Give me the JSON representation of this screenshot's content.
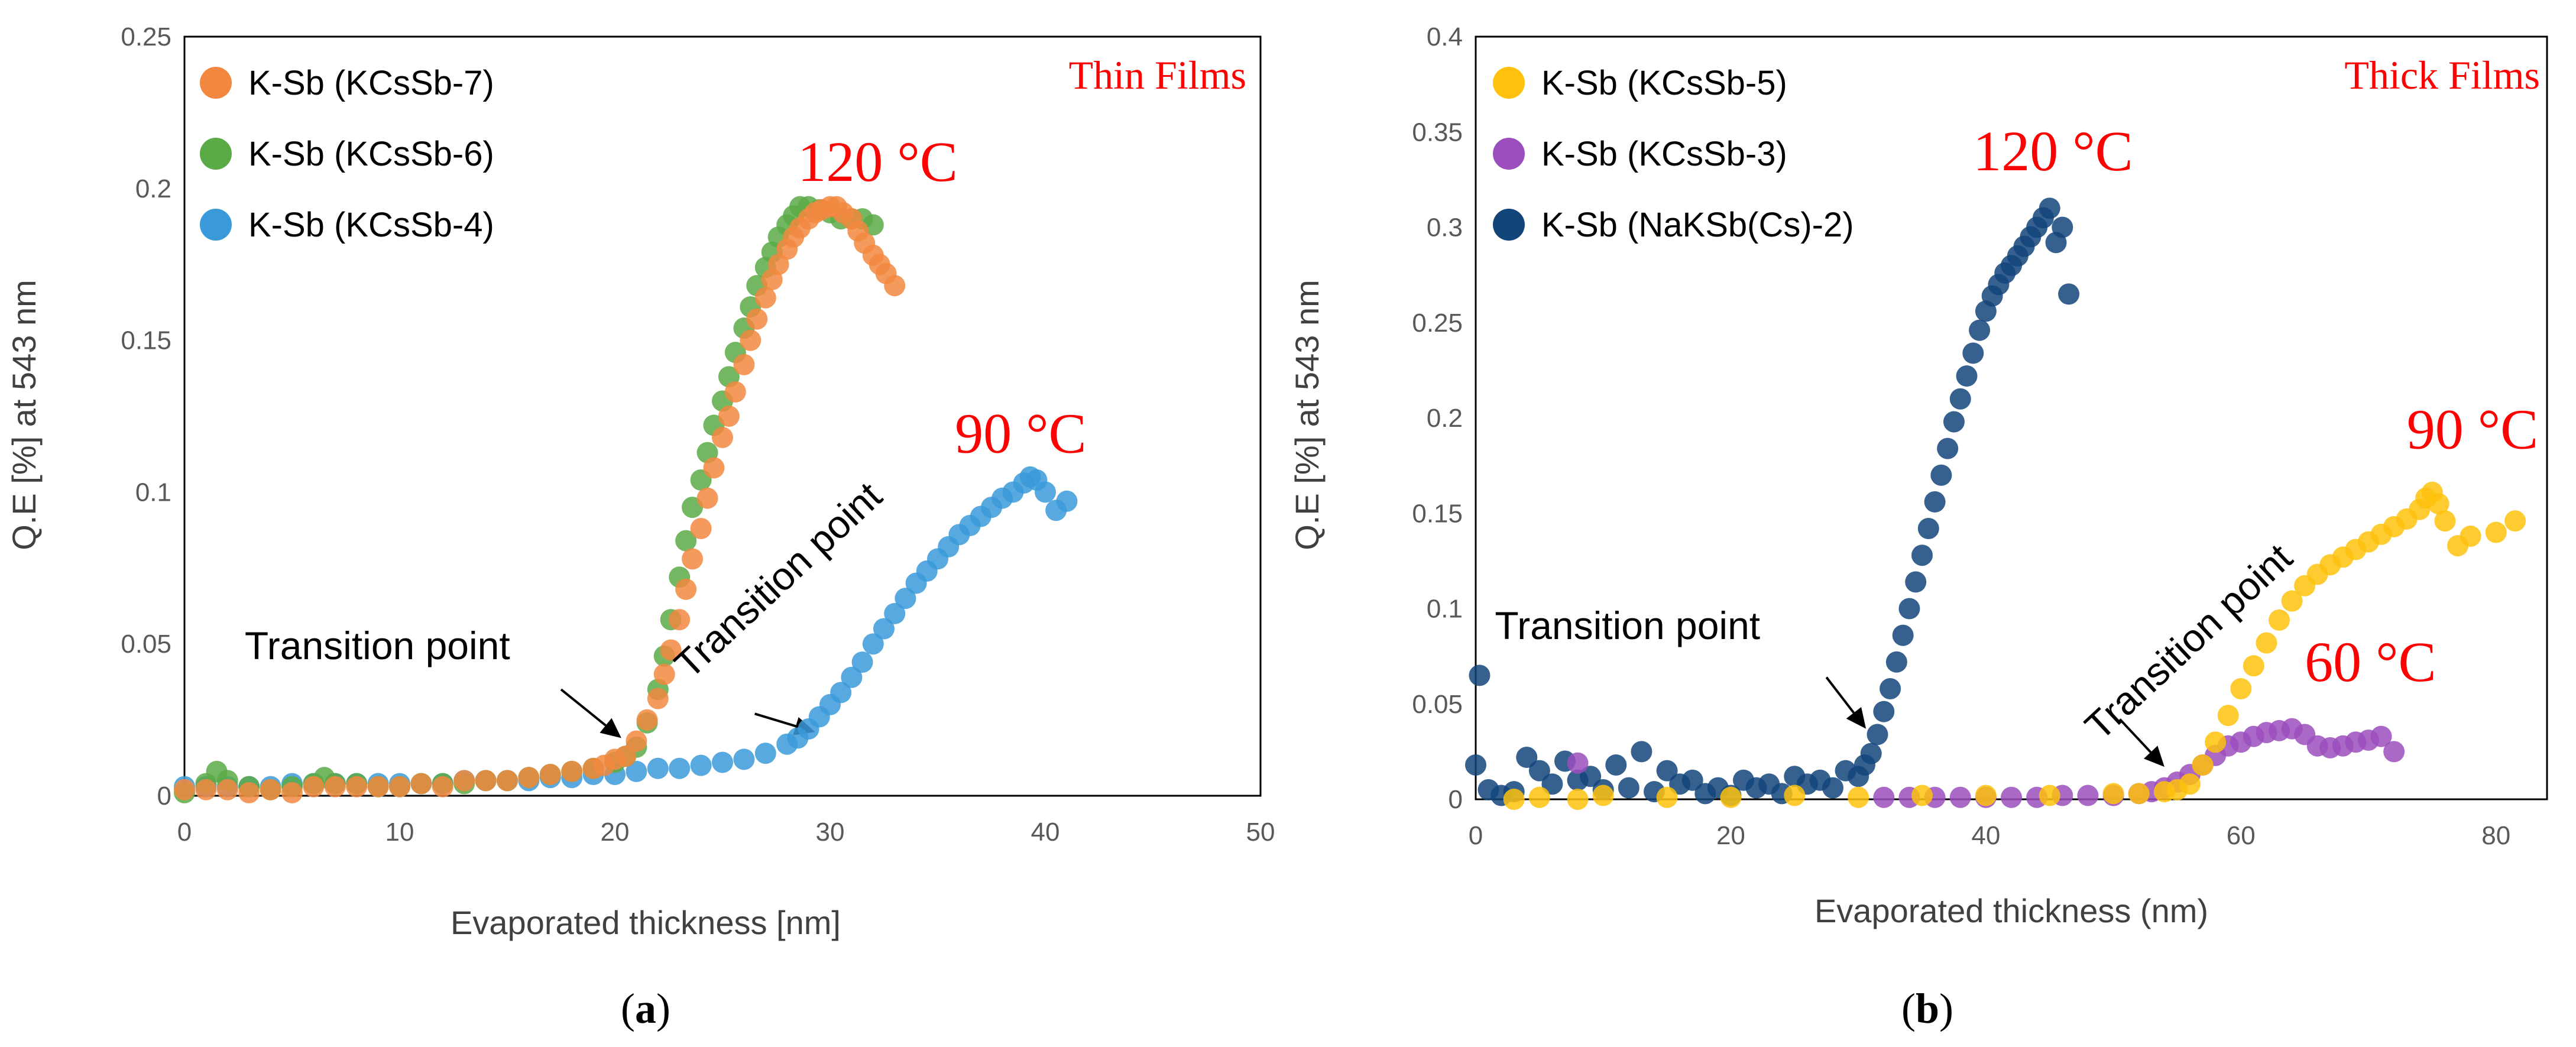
{
  "chart_data": [
    {
      "type": "scatter",
      "panel": "a",
      "caption_letter": "a",
      "title": "",
      "tag": "Thin Films",
      "xlabel": "Evaporated thickness [nm]",
      "ylabel": "Q.E [%] at 543 nm",
      "xlim": [
        0,
        50
      ],
      "ylim": [
        0,
        0.25
      ],
      "xticks": [
        0,
        10,
        20,
        30,
        40,
        50
      ],
      "yticks": [
        0,
        0.05,
        0.1,
        0.15,
        0.2,
        0.25
      ],
      "xtick_labels": [
        "0",
        "10",
        "20",
        "30",
        "40",
        "50"
      ],
      "ytick_labels": [
        "0",
        "0.05",
        "0.1",
        "0.15",
        "0.2",
        "0.25"
      ],
      "legend_position": "top-left",
      "annotations": [
        {
          "text": "120 °C",
          "x": 28.5,
          "y": 0.2025,
          "color": "#ff0000"
        },
        {
          "text": "90 °C",
          "x": 35.8,
          "y": 0.113,
          "color": "#ff0000"
        },
        {
          "text": "Transition point",
          "x": 2.8,
          "y": 0.045
        },
        {
          "text": "Transition point",
          "x": 23.5,
          "y": 0.038
        }
      ],
      "arrows": [
        {
          "from": [
            17.5,
            0.035
          ],
          "to": [
            20.3,
            0.019
          ]
        },
        {
          "from": [
            26.5,
            0.027
          ],
          "to": [
            29.3,
            0.021
          ]
        }
      ],
      "series": [
        {
          "name": "K-Sb (KCsSb-7)",
          "color": "#f2883f",
          "x": [
            0,
            1,
            2,
            3,
            4,
            5,
            6,
            7,
            8,
            9,
            10,
            11,
            12,
            13,
            14,
            15,
            16,
            17,
            18,
            19,
            19.5,
            20,
            20.5,
            21,
            21.5,
            22,
            22.3,
            22.6,
            23,
            23.3,
            23.6,
            24,
            24.3,
            24.6,
            25,
            25.3,
            25.6,
            26,
            26.3,
            26.6,
            27,
            27.3,
            27.6,
            28,
            28.3,
            28.6,
            29,
            29.3,
            29.6,
            30,
            30.3,
            30.6,
            31,
            31.3,
            31.6,
            32,
            32.3,
            32.6,
            33
          ],
          "y": [
            0.002,
            0.002,
            0.002,
            0.001,
            0.002,
            0.001,
            0.003,
            0.003,
            0.003,
            0.003,
            0.003,
            0.004,
            0.003,
            0.005,
            0.005,
            0.005,
            0.006,
            0.007,
            0.008,
            0.009,
            0.01,
            0.012,
            0.013,
            0.018,
            0.025,
            0.032,
            0.04,
            0.048,
            0.058,
            0.068,
            0.078,
            0.088,
            0.098,
            0.108,
            0.118,
            0.125,
            0.133,
            0.142,
            0.15,
            0.157,
            0.164,
            0.17,
            0.175,
            0.18,
            0.184,
            0.187,
            0.19,
            0.192,
            0.193,
            0.194,
            0.194,
            0.192,
            0.19,
            0.186,
            0.182,
            0.178,
            0.175,
            0.172,
            0.168
          ]
        },
        {
          "name": "K-Sb (KCsSb-6)",
          "color": "#5aaa46",
          "x": [
            0,
            1,
            1.5,
            2,
            3,
            4,
            5,
            6,
            6.5,
            7,
            8,
            9,
            10,
            11,
            12,
            13,
            14,
            15,
            16,
            17,
            18,
            19,
            20,
            20.5,
            21,
            21.5,
            22,
            22.3,
            22.6,
            23,
            23.3,
            23.6,
            24,
            24.3,
            24.6,
            25,
            25.3,
            25.6,
            26,
            26.3,
            26.6,
            27,
            27.3,
            27.6,
            28,
            28.3,
            28.6,
            29,
            29.5,
            30,
            30.5,
            31,
            31.5,
            32
          ],
          "y": [
            0.001,
            0.004,
            0.008,
            0.005,
            0.003,
            0.002,
            0.003,
            0.004,
            0.006,
            0.004,
            0.004,
            0.003,
            0.003,
            0.004,
            0.004,
            0.004,
            0.005,
            0.005,
            0.006,
            0.007,
            0.008,
            0.009,
            0.011,
            0.013,
            0.016,
            0.024,
            0.035,
            0.046,
            0.058,
            0.072,
            0.084,
            0.095,
            0.104,
            0.113,
            0.122,
            0.13,
            0.138,
            0.146,
            0.154,
            0.161,
            0.168,
            0.174,
            0.179,
            0.184,
            0.188,
            0.191,
            0.194,
            0.194,
            0.193,
            0.192,
            0.19,
            0.19,
            0.19,
            0.188
          ]
        },
        {
          "name": "K-Sb (KCsSb-4)",
          "color": "#3a9ad9",
          "x": [
            0,
            1,
            2,
            3,
            4,
            5,
            6,
            7,
            8,
            9,
            10,
            11,
            12,
            13,
            14,
            15,
            16,
            17,
            18,
            19,
            20,
            21,
            22,
            23,
            24,
            25,
            26,
            27,
            28,
            28.5,
            29,
            29.5,
            30,
            30.5,
            31,
            31.5,
            32,
            32.5,
            33,
            33.5,
            34,
            34.5,
            35,
            35.5,
            36,
            36.5,
            37,
            37.5,
            38,
            38.5,
            39,
            39.3,
            39.6,
            40,
            40.5,
            41
          ],
          "y": [
            0.003,
            0.003,
            0.003,
            0.003,
            0.003,
            0.004,
            0.004,
            0.004,
            0.004,
            0.004,
            0.004,
            0.004,
            0.004,
            0.005,
            0.005,
            0.005,
            0.005,
            0.006,
            0.006,
            0.007,
            0.007,
            0.008,
            0.009,
            0.009,
            0.01,
            0.011,
            0.012,
            0.014,
            0.017,
            0.019,
            0.022,
            0.026,
            0.03,
            0.034,
            0.039,
            0.044,
            0.05,
            0.055,
            0.06,
            0.065,
            0.07,
            0.074,
            0.078,
            0.082,
            0.086,
            0.089,
            0.092,
            0.095,
            0.098,
            0.1,
            0.103,
            0.105,
            0.104,
            0.1,
            0.094,
            0.097
          ]
        }
      ]
    },
    {
      "type": "scatter",
      "panel": "b",
      "caption_letter": "b",
      "title": "",
      "tag": "Thick Films",
      "xlabel": "Evaporated thickness (nm)",
      "ylabel": "Q.E [%] at 543 nm",
      "xlim": [
        0,
        84
      ],
      "ylim": [
        0,
        0.4
      ],
      "xticks": [
        0,
        20,
        40,
        60,
        80
      ],
      "yticks": [
        0,
        0.05,
        0.1,
        0.15,
        0.2,
        0.25,
        0.3,
        0.35,
        0.4
      ],
      "xtick_labels": [
        "0",
        "20",
        "40",
        "60",
        "80"
      ],
      "ytick_labels": [
        "0",
        "0.05",
        "0.1",
        "0.15",
        "0.2",
        "0.25",
        "0.3",
        "0.35",
        "0.4"
      ],
      "legend_position": "top-left",
      "annotations": [
        {
          "text": "120 °C",
          "x": 39,
          "y": 0.33,
          "color": "#ff0000"
        },
        {
          "text": "90 °C",
          "x": 73,
          "y": 0.184,
          "color": "#ff0000"
        },
        {
          "text": "60 °C",
          "x": 65,
          "y": 0.062,
          "color": "#ff0000"
        },
        {
          "text": "Transition point",
          "x": 1.5,
          "y": 0.084
        },
        {
          "text": "Transition point",
          "x": 49,
          "y": 0.03
        }
      ],
      "arrows": [
        {
          "from": [
            27.5,
            0.064
          ],
          "to": [
            30.6,
            0.037
          ]
        },
        {
          "from": [
            50.5,
            0.042
          ],
          "to": [
            54,
            0.017
          ]
        }
      ],
      "series": [
        {
          "name": "K-Sb (KCsSb-5)",
          "color": "#fec20d",
          "x": [
            3,
            5,
            8,
            10,
            15,
            20,
            25,
            30,
            35,
            40,
            45,
            50,
            52,
            54,
            55,
            56,
            57,
            58,
            59,
            60,
            61,
            62,
            63,
            64,
            65,
            66,
            67,
            68,
            69,
            70,
            71,
            72,
            73,
            74,
            74.5,
            75,
            75.5,
            76,
            77,
            78,
            80,
            81.5
          ],
          "y": [
            0,
            0.001,
            0,
            0.002,
            0.001,
            0.001,
            0.002,
            0.001,
            0.002,
            0.002,
            0.002,
            0.003,
            0.003,
            0.004,
            0.005,
            0.008,
            0.018,
            0.03,
            0.044,
            0.058,
            0.07,
            0.082,
            0.094,
            0.104,
            0.112,
            0.118,
            0.123,
            0.127,
            0.131,
            0.135,
            0.139,
            0.143,
            0.147,
            0.152,
            0.158,
            0.161,
            0.155,
            0.146,
            0.133,
            0.138,
            0.14,
            0.146
          ]
        },
        {
          "name": "K-Sb (KCsSb-3)",
          "color": "#9b4fbd",
          "x": [
            8,
            32,
            34,
            36,
            38,
            40,
            42,
            44,
            46,
            48,
            50,
            52,
            53,
            54,
            55,
            56,
            57,
            58,
            59,
            60,
            61,
            62,
            63,
            64,
            65,
            66,
            67,
            68,
            69,
            70,
            71,
            72
          ],
          "y": [
            0.019,
            0.001,
            0.001,
            0.001,
            0.001,
            0.001,
            0.001,
            0.001,
            0.002,
            0.002,
            0.002,
            0.003,
            0.004,
            0.006,
            0.009,
            0.013,
            0.018,
            0.023,
            0.028,
            0.03,
            0.033,
            0.035,
            0.036,
            0.037,
            0.034,
            0.028,
            0.027,
            0.028,
            0.03,
            0.031,
            0.033,
            0.025
          ]
        },
        {
          "name": "K-Sb (NaKSb(Cs)-2)",
          "color": "#13457b",
          "x": [
            0,
            0.3,
            1,
            2,
            3,
            4,
            5,
            6,
            7,
            8,
            9,
            10,
            11,
            12,
            13,
            14,
            15,
            16,
            17,
            18,
            19,
            20,
            21,
            22,
            23,
            24,
            25,
            26,
            27,
            28,
            29,
            30,
            30.5,
            31,
            31.5,
            32,
            32.5,
            33,
            33.5,
            34,
            34.5,
            35,
            35.5,
            36,
            36.5,
            37,
            37.5,
            38,
            38.5,
            39,
            39.5,
            40,
            40.5,
            41,
            41.5,
            42,
            42.5,
            43,
            43.5,
            44,
            44.5,
            45,
            45.5,
            46,
            46.5
          ],
          "y": [
            0.018,
            0.065,
            0.005,
            0.002,
            0.004,
            0.022,
            0.015,
            0.008,
            0.02,
            0.01,
            0.012,
            0.005,
            0.018,
            0.006,
            0.025,
            0.004,
            0.015,
            0.008,
            0.01,
            0.003,
            0.006,
            0.002,
            0.01,
            0.006,
            0.008,
            0.003,
            0.012,
            0.008,
            0.01,
            0.006,
            0.015,
            0.012,
            0.018,
            0.024,
            0.034,
            0.046,
            0.058,
            0.072,
            0.086,
            0.1,
            0.114,
            0.128,
            0.142,
            0.156,
            0.17,
            0.184,
            0.198,
            0.21,
            0.222,
            0.234,
            0.246,
            0.256,
            0.264,
            0.27,
            0.276,
            0.28,
            0.285,
            0.29,
            0.295,
            0.3,
            0.305,
            0.31,
            0.292,
            0.3,
            0.265
          ]
        }
      ]
    }
  ]
}
